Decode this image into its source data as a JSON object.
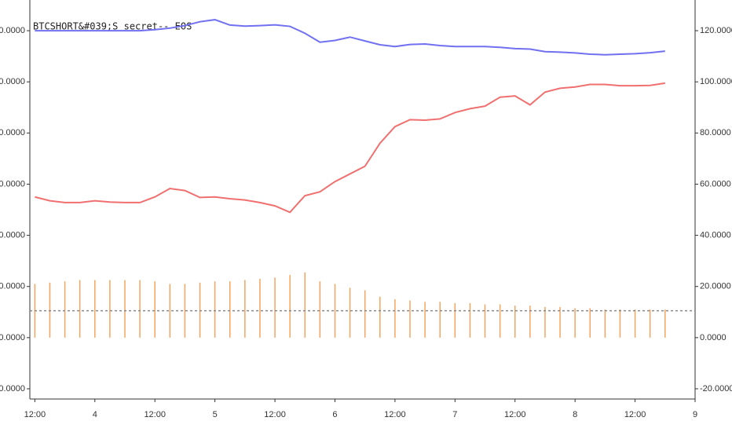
{
  "chart_data": {
    "type": "line-bar",
    "title": "BTCSHORT&#039;S secret-- EOS",
    "x": [
      12,
      15,
      18,
      21,
      24,
      27,
      30,
      33,
      36,
      39,
      42,
      45,
      48,
      51,
      54,
      57,
      60,
      63,
      66,
      69,
      72,
      75,
      78,
      81,
      84,
      87,
      90,
      93,
      96,
      99,
      102,
      105,
      108,
      111,
      114,
      117,
      120,
      123,
      126,
      129,
      132,
      135,
      138
    ],
    "series": [
      {
        "kind": "line",
        "color": "#7070f0",
        "values": [
          120,
          120,
          120,
          120,
          120,
          120,
          120,
          120,
          120.4,
          121,
          122,
          123.5,
          124.3,
          122.2,
          121.8,
          122,
          122.3,
          121.7,
          119,
          115.5,
          116.2,
          117.5,
          116,
          114.5,
          113.8,
          114.6,
          114.8,
          114.2,
          113.8,
          113.8,
          113.8,
          113.5,
          113,
          112.8,
          111.8,
          111.6,
          111.3,
          110.8,
          110.6,
          110.8,
          111,
          111.4,
          112
        ]
      },
      {
        "kind": "line",
        "color": "#f07070",
        "values": [
          55,
          53.5,
          52.8,
          52.8,
          53.5,
          53,
          52.8,
          52.8,
          55,
          58.3,
          57.5,
          54.8,
          55,
          54.3,
          53.8,
          52.8,
          51.5,
          49,
          55.5,
          57,
          61,
          64,
          67,
          76,
          82.5,
          85.2,
          85,
          85.5,
          88,
          89.5,
          90.5,
          94,
          94.5,
          91,
          96,
          97.5,
          98,
          99,
          99,
          98.5,
          98.5,
          98.6,
          99.5
        ]
      },
      {
        "kind": "bar",
        "color": "#f4a460",
        "values": [
          21,
          21.5,
          22,
          22.5,
          22.5,
          22.5,
          22.5,
          22.5,
          22,
          21,
          21,
          21.5,
          22,
          22,
          22.5,
          23,
          23.5,
          24.5,
          25.5,
          22,
          21,
          19.5,
          18.5,
          16,
          15,
          14.5,
          14,
          14,
          13.5,
          13.5,
          13,
          13,
          12.5,
          12.5,
          12,
          12,
          11.5,
          11.5,
          11,
          11,
          11,
          11,
          11
        ]
      }
    ],
    "reference_line": 10.5,
    "xlim": [
      11,
      144
    ],
    "xticks": [
      {
        "value": 12,
        "label": "12:00"
      },
      {
        "value": 24,
        "label": "4"
      },
      {
        "value": 36,
        "label": "12:00"
      },
      {
        "value": 48,
        "label": "5"
      },
      {
        "value": 60,
        "label": "12:00"
      },
      {
        "value": 72,
        "label": "6"
      },
      {
        "value": 84,
        "label": "12:00"
      },
      {
        "value": 96,
        "label": "7"
      },
      {
        "value": 108,
        "label": "12:00"
      },
      {
        "value": 120,
        "label": "8"
      },
      {
        "value": 132,
        "label": "12:00"
      },
      {
        "value": 144,
        "label": "9"
      }
    ],
    "ylim": [
      -24,
      132
    ],
    "yticks": [
      {
        "value": -20,
        "label": "-20.0000"
      },
      {
        "value": 0,
        "label": "0.0000"
      },
      {
        "value": 20,
        "label": "20.0000"
      },
      {
        "value": 40,
        "label": "40.0000"
      },
      {
        "value": 60,
        "label": "60.0000"
      },
      {
        "value": 80,
        "label": "80.0000"
      },
      {
        "value": 100,
        "label": "100.0000"
      },
      {
        "value": 120,
        "label": "120.0000"
      }
    ]
  }
}
